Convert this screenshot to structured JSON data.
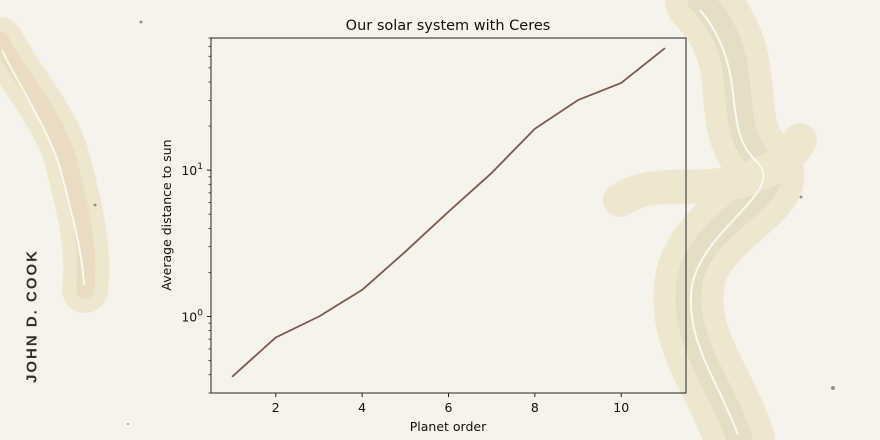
{
  "branding": {
    "author": "JOHN D. COOK"
  },
  "colors": {
    "background": "#f6f3ea",
    "line": "#7b5a4c",
    "axis": "#222222"
  },
  "chart_data": {
    "type": "line",
    "title": "Our solar system with Ceres",
    "xlabel": "Planet order",
    "ylabel": "Average distance to sun",
    "yscale": "log",
    "xlim": [
      0.5,
      11.5
    ],
    "ylim": [
      0.3,
      80
    ],
    "xticks": [
      2,
      4,
      6,
      8,
      10
    ],
    "yticks": [
      {
        "value": 1,
        "base": "10",
        "exp": "0"
      },
      {
        "value": 10,
        "base": "10",
        "exp": "1"
      }
    ],
    "grid": false,
    "series": [
      {
        "x": [
          1,
          2,
          3,
          4,
          5,
          6,
          7,
          8,
          9,
          10,
          11
        ],
        "values": [
          0.39,
          0.72,
          1.0,
          1.52,
          2.77,
          5.2,
          9.58,
          19.2,
          30.1,
          39.5,
          67.7
        ]
      }
    ]
  }
}
